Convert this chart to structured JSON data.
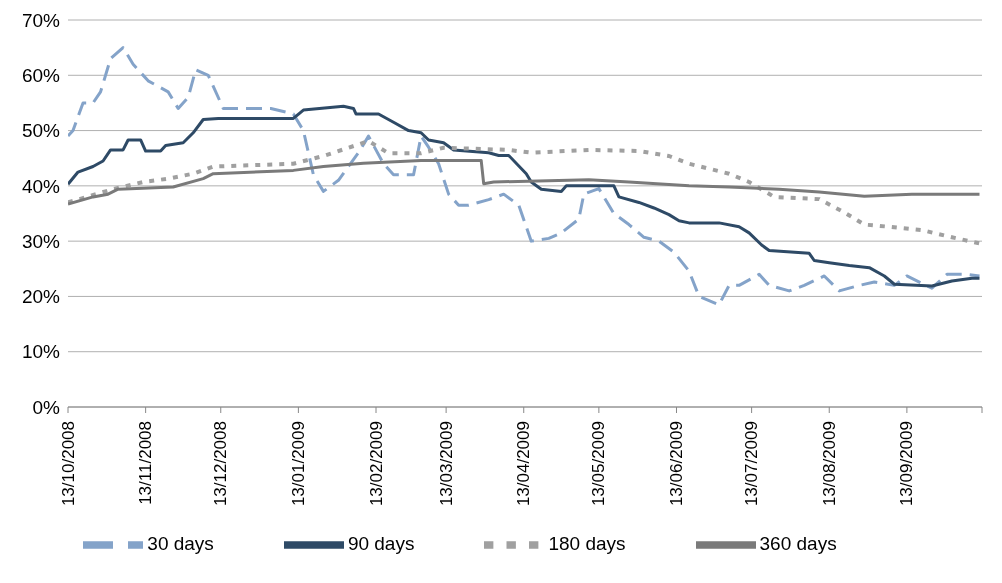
{
  "chart_data": {
    "type": "line",
    "legend": "bottom",
    "grid": "y",
    "ylim": [
      0,
      70
    ],
    "yticks": [
      {
        "value": 0,
        "label": "0%"
      },
      {
        "value": 10,
        "label": "10%"
      },
      {
        "value": 20,
        "label": "20%"
      },
      {
        "value": 30,
        "label": "30%"
      },
      {
        "value": 40,
        "label": "40%"
      },
      {
        "value": 50,
        "label": "50%"
      },
      {
        "value": 60,
        "label": "60%"
      },
      {
        "value": 70,
        "label": "70%"
      }
    ],
    "xlim": [
      "2008-10-13",
      "2009-10-13"
    ],
    "xticks": [
      {
        "value": "2008-10-13",
        "label": "13/10/2008"
      },
      {
        "value": "2008-11-13",
        "label": "13/11/2008"
      },
      {
        "value": "2008-12-13",
        "label": "13/12/2008"
      },
      {
        "value": "2009-01-13",
        "label": "13/01/2009"
      },
      {
        "value": "2009-02-13",
        "label": "13/02/2009"
      },
      {
        "value": "2009-03-13",
        "label": "13/03/2009"
      },
      {
        "value": "2009-04-13",
        "label": "13/04/2009"
      },
      {
        "value": "2009-05-13",
        "label": "13/05/2009"
      },
      {
        "value": "2009-06-13",
        "label": "13/06/2009"
      },
      {
        "value": "2009-07-13",
        "label": "13/07/2009"
      },
      {
        "value": "2009-08-13",
        "label": "13/08/2009"
      },
      {
        "value": "2009-09-13",
        "label": "13/09/2009"
      },
      {
        "value": "2009-10-13",
        "label": null
      }
    ],
    "series": [
      {
        "name": "30 days",
        "color": "#84a3c9",
        "line_style": "dashed",
        "x": [
          "2008-10-13",
          "2008-10-15",
          "2008-10-19",
          "2008-10-23",
          "2008-10-26",
          "2008-10-30",
          "2008-11-04",
          "2008-11-08",
          "2008-11-14",
          "2008-11-22",
          "2008-11-26",
          "2008-11-30",
          "2008-12-03",
          "2008-12-08",
          "2008-12-14",
          "2008-12-25",
          "2009-01-02",
          "2009-01-11",
          "2009-01-15",
          "2009-01-19",
          "2009-01-23",
          "2009-01-29",
          "2009-02-06",
          "2009-02-10",
          "2009-02-16",
          "2009-02-20",
          "2009-02-28",
          "2009-03-03",
          "2009-03-06",
          "2009-03-10",
          "2009-03-14",
          "2009-03-18",
          "2009-03-22",
          "2009-03-30",
          "2009-04-05",
          "2009-04-11",
          "2009-04-16",
          "2009-04-23",
          "2009-04-28",
          "2009-05-05",
          "2009-05-07",
          "2009-05-13",
          "2009-05-19",
          "2009-05-25",
          "2009-05-31",
          "2009-06-06",
          "2009-06-12",
          "2009-06-18",
          "2009-06-22",
          "2009-06-30",
          "2009-07-04",
          "2009-07-08",
          "2009-07-16",
          "2009-07-20",
          "2009-07-28",
          "2009-08-03",
          "2009-08-11",
          "2009-08-17",
          "2009-08-25",
          "2009-08-31",
          "2009-09-08",
          "2009-09-13",
          "2009-09-23",
          "2009-09-29",
          "2009-10-07",
          "2009-10-12"
        ],
        "values": [
          49,
          50,
          55,
          55,
          57,
          63,
          65,
          62,
          59,
          57,
          54,
          56,
          61,
          60,
          54,
          54,
          54,
          53,
          50,
          42,
          39,
          41,
          46,
          49,
          44,
          42,
          42,
          49,
          47,
          44,
          38.5,
          36.5,
          36.5,
          37.5,
          38.5,
          36.5,
          30,
          30.5,
          31.5,
          34,
          38.5,
          39.5,
          35,
          33,
          30.7,
          30,
          28,
          24.6,
          20,
          18.5,
          22,
          22,
          24,
          22,
          21,
          22,
          23.7,
          21,
          22,
          22.6,
          22,
          23.7,
          21.5,
          24,
          24,
          23.7
        ]
      },
      {
        "name": "90 days",
        "color": "#2e4a66",
        "line_style": "solid",
        "x": [
          "2008-10-13",
          "2008-10-17",
          "2008-10-23",
          "2008-10-27",
          "2008-10-30",
          "2008-11-04",
          "2008-11-06",
          "2008-11-11",
          "2008-11-13",
          "2008-11-19",
          "2008-11-21",
          "2008-11-28",
          "2008-12-02",
          "2008-12-06",
          "2008-12-12",
          "2009-01-11",
          "2009-01-15",
          "2009-01-31",
          "2009-02-04",
          "2009-02-05",
          "2009-02-14",
          "2009-02-20",
          "2009-02-26",
          "2009-03-03",
          "2009-03-06",
          "2009-03-12",
          "2009-03-16",
          "2009-03-30",
          "2009-04-03",
          "2009-04-07",
          "2009-04-14",
          "2009-04-16",
          "2009-04-20",
          "2009-04-28",
          "2009-04-30",
          "2009-05-13",
          "2009-05-19",
          "2009-05-21",
          "2009-05-29",
          "2009-06-04",
          "2009-06-10",
          "2009-06-14",
          "2009-06-18",
          "2009-06-30",
          "2009-07-08",
          "2009-07-12",
          "2009-07-17",
          "2009-07-20",
          "2009-08-05",
          "2009-08-07",
          "2009-08-13",
          "2009-08-21",
          "2009-08-29",
          "2009-09-04",
          "2009-09-08",
          "2009-09-23",
          "2009-10-01",
          "2009-10-09",
          "2009-10-12"
        ],
        "values": [
          40.3,
          42.5,
          43.5,
          44.5,
          46.5,
          46.5,
          48.3,
          48.3,
          46.3,
          46.3,
          47.3,
          47.8,
          49.6,
          52,
          52.2,
          52.2,
          53.7,
          54.4,
          54,
          53,
          53,
          51.5,
          50,
          49.6,
          48.3,
          47.8,
          46.5,
          46,
          45.5,
          45.5,
          42.2,
          40.7,
          39.4,
          39,
          40,
          40,
          40,
          38,
          37,
          36,
          34.8,
          33.7,
          33.3,
          33.3,
          32.6,
          31.5,
          29.3,
          28.3,
          27.8,
          26.5,
          26.1,
          25.6,
          25.2,
          23.7,
          22.2,
          21.9,
          22.8,
          23.3,
          23.3
        ]
      },
      {
        "name": "180 days",
        "color": "#a0a0a0",
        "line_style": "dotted",
        "x": [
          "2008-10-13",
          "2008-10-31",
          "2008-11-12",
          "2008-11-22",
          "2008-12-02",
          "2008-12-10",
          "2009-01-11",
          "2009-01-23",
          "2009-02-02",
          "2009-02-10",
          "2009-02-18",
          "2009-03-03",
          "2009-03-12",
          "2009-04-07",
          "2009-04-16",
          "2009-05-09",
          "2009-05-29",
          "2009-06-10",
          "2009-06-18",
          "2009-07-04",
          "2009-07-12",
          "2009-07-22",
          "2009-08-09",
          "2009-08-19",
          "2009-08-27",
          "2009-09-06",
          "2009-09-19",
          "2009-10-01",
          "2009-10-12"
        ],
        "values": [
          37,
          39.4,
          40.7,
          41.3,
          42.2,
          43.5,
          44,
          45.4,
          46.9,
          48.1,
          45.9,
          45.9,
          46.9,
          46.5,
          46,
          46.5,
          46.3,
          45.4,
          44,
          42.2,
          40.7,
          38,
          37.6,
          35.2,
          33,
          32.6,
          32,
          30.7,
          29.6
        ]
      },
      {
        "name": "360 days",
        "color": "#7a7a7a",
        "line_style": "solid",
        "x": [
          "2008-10-13",
          "2008-10-23",
          "2008-10-29",
          "2008-11-02",
          "2008-11-24",
          "2008-12-06",
          "2008-12-10",
          "2009-01-11",
          "2009-01-23",
          "2009-02-08",
          "2009-03-03",
          "2009-03-27",
          "2009-03-28",
          "2009-04-01",
          "2009-05-09",
          "2009-05-25",
          "2009-06-18",
          "2009-07-04",
          "2009-07-24",
          "2009-08-09",
          "2009-08-27",
          "2009-09-15",
          "2009-10-12"
        ],
        "values": [
          36.7,
          38,
          38.5,
          39.4,
          39.8,
          41.3,
          42.2,
          42.8,
          43.5,
          44.1,
          44.6,
          44.6,
          40.4,
          40.7,
          41.1,
          40.7,
          40,
          39.8,
          39.4,
          38.9,
          38.1,
          38.5,
          38.5
        ]
      }
    ]
  }
}
